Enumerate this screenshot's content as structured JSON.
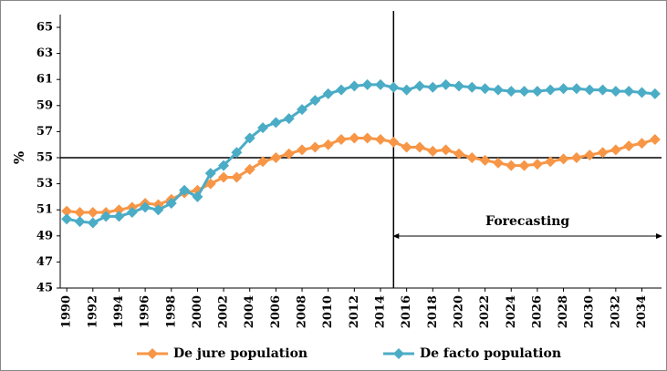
{
  "chart_data": {
    "type": "line",
    "y_label": "%",
    "x": [
      1990,
      1991,
      1992,
      1993,
      1994,
      1995,
      1996,
      1997,
      1998,
      1999,
      2000,
      2001,
      2002,
      2003,
      2004,
      2005,
      2006,
      2007,
      2008,
      2009,
      2010,
      2011,
      2012,
      2013,
      2014,
      2015,
      2016,
      2017,
      2018,
      2019,
      2020,
      2021,
      2022,
      2023,
      2024,
      2025,
      2026,
      2027,
      2028,
      2029,
      2030,
      2031,
      2032,
      2033,
      2034,
      2035
    ],
    "series": [
      {
        "name": "De jure population",
        "color": "#f79646",
        "values": [
          50.9,
          50.8,
          50.8,
          50.8,
          51.0,
          51.2,
          51.5,
          51.4,
          51.8,
          52.3,
          52.5,
          53.0,
          53.5,
          53.5,
          54.1,
          54.7,
          55.0,
          55.3,
          55.6,
          55.8,
          56.0,
          56.4,
          56.5,
          56.5,
          56.4,
          56.2,
          55.8,
          55.8,
          55.5,
          55.6,
          55.3,
          55.0,
          54.8,
          54.6,
          54.4,
          54.4,
          54.5,
          54.7,
          54.9,
          55.0,
          55.2,
          55.4,
          55.6,
          55.9,
          56.1,
          56.4
        ]
      },
      {
        "name": "De facto population",
        "color": "#4bacc6",
        "values": [
          50.3,
          50.1,
          50.0,
          50.5,
          50.5,
          50.8,
          51.2,
          51.0,
          51.5,
          52.5,
          52.0,
          53.8,
          54.4,
          55.4,
          56.5,
          57.3,
          57.7,
          58.0,
          58.7,
          59.4,
          59.9,
          60.2,
          60.5,
          60.6,
          60.6,
          60.4,
          60.2,
          60.5,
          60.4,
          60.6,
          60.5,
          60.4,
          60.3,
          60.2,
          60.1,
          60.1,
          60.1,
          60.2,
          60.3,
          60.3,
          60.2,
          60.2,
          60.1,
          60.1,
          60.0,
          59.9
        ]
      }
    ],
    "xlim": [
      1989.5,
      2035.5
    ],
    "xticks": [
      1990,
      1992,
      1994,
      1996,
      1998,
      2000,
      2002,
      2004,
      2006,
      2008,
      2010,
      2012,
      2014,
      2016,
      2018,
      2020,
      2022,
      2024,
      2026,
      2028,
      2030,
      2032,
      2034
    ],
    "ylim": [
      45,
      65
    ],
    "yticks": [
      45,
      47,
      49,
      51,
      53,
      55,
      57,
      59,
      61,
      63,
      65
    ],
    "vline": 2015,
    "hline": 55,
    "annotation": "Forecasting",
    "legend": "bottom"
  }
}
